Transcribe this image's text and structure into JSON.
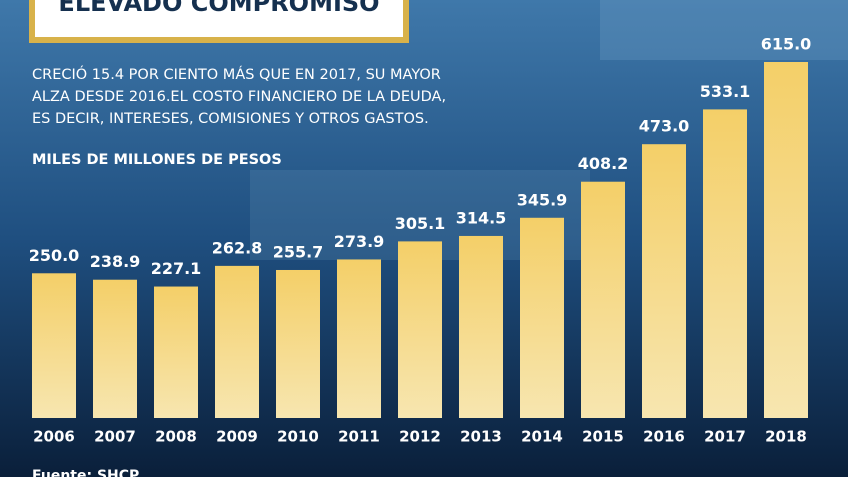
{
  "chart_data": {
    "type": "bar",
    "title": "ELEVADO COMPROMISO",
    "subtitle_lines": [
      "CRECIÓ 15.4 POR CIENTO MÁS QUE EN 2017, SU MAYOR",
      "ALZA DESDE 2016.EL COSTO FINANCIERO DE LA DEUDA,",
      "ES DECIR, INTERESES, COMISIONES Y OTROS GASTOS."
    ],
    "y_label": "MILES DE MILLONES DE PESOS",
    "source": "Fuente: SHCP",
    "categories": [
      "2006",
      "2007",
      "2008",
      "2009",
      "2010",
      "2011",
      "2012",
      "2013",
      "2014",
      "2015",
      "2016",
      "2017",
      "2018"
    ],
    "values": [
      250.0,
      238.9,
      227.1,
      262.8,
      255.7,
      273.9,
      305.1,
      314.5,
      345.9,
      408.2,
      473.0,
      533.1,
      615.0
    ],
    "value_labels": [
      "250.0",
      "238.9",
      "227.1",
      "262.8",
      "255.7",
      "273.9",
      "305.1",
      "314.5",
      "345.9",
      "408.2",
      "473.0",
      "533.1",
      "615.0"
    ],
    "color": "#f2c85e"
  }
}
